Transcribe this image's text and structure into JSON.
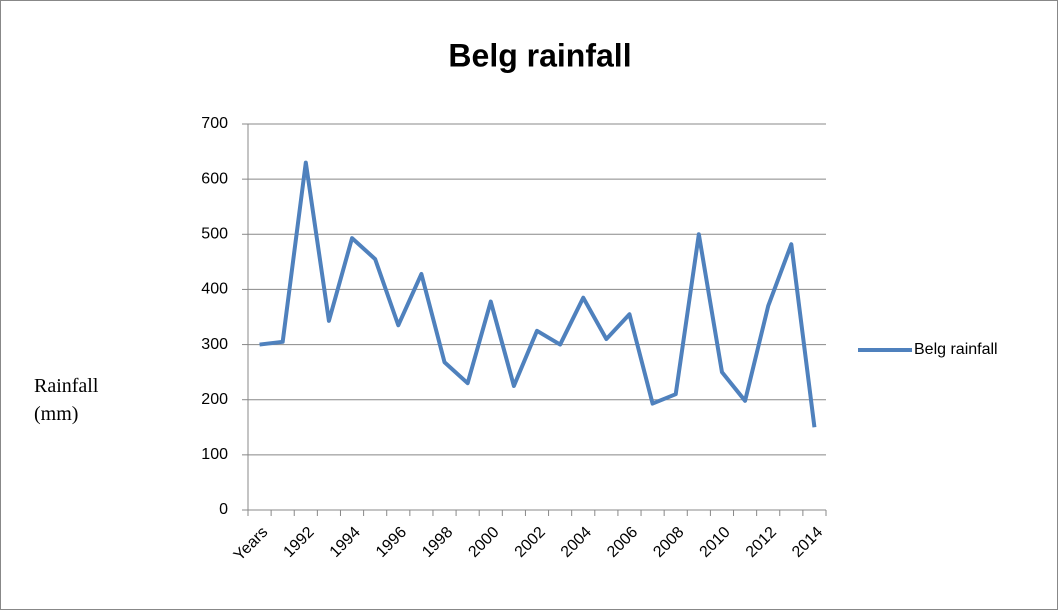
{
  "chart_data": {
    "type": "line",
    "title": "Belg rainfall",
    "y_label": "Rainfall (mm)",
    "categories": [
      "Years",
      null,
      "1992",
      null,
      "1994",
      null,
      "1996",
      null,
      "1998",
      null,
      "2000",
      null,
      "2002",
      null,
      "2004",
      null,
      "2006",
      null,
      "2008",
      null,
      "2010",
      null,
      "2012",
      null,
      "2014"
    ],
    "series": [
      {
        "name": "Belg rainfall",
        "color": "#4f81bd",
        "values": [
          300,
          305,
          630,
          343,
          493,
          455,
          335,
          428,
          268,
          230,
          378,
          225,
          325,
          300,
          385,
          310,
          355,
          193,
          210,
          500,
          250,
          198,
          370,
          482,
          150
        ]
      }
    ],
    "ylim": [
      0,
      700
    ],
    "yticks": [
      0,
      100,
      200,
      300,
      400,
      500,
      600,
      700
    ],
    "grid": true,
    "legend": "right"
  }
}
